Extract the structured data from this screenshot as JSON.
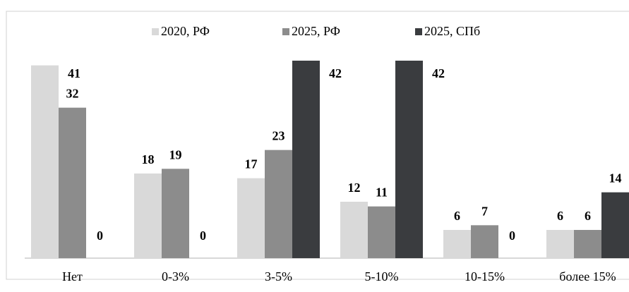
{
  "chart_data": {
    "type": "bar",
    "categories": [
      "Нет",
      "0-3%",
      "3-5%",
      "5-10%",
      "10-15%",
      "более 15%"
    ],
    "series": [
      {
        "name": "2020, РФ",
        "color": "#d9d9d9",
        "values": [
          41,
          18,
          17,
          12,
          6,
          6
        ]
      },
      {
        "name": "2025, РФ",
        "color": "#8c8c8c",
        "values": [
          32,
          19,
          23,
          11,
          7,
          6
        ]
      },
      {
        "name": "2025, СПб",
        "color": "#3a3c3f",
        "values": [
          0,
          0,
          42,
          42,
          0,
          14
        ]
      }
    ],
    "title": "",
    "xlabel": "",
    "ylabel": "",
    "ylim": [
      0,
      42
    ],
    "grid": false,
    "legend": "top",
    "value_labels": true
  }
}
